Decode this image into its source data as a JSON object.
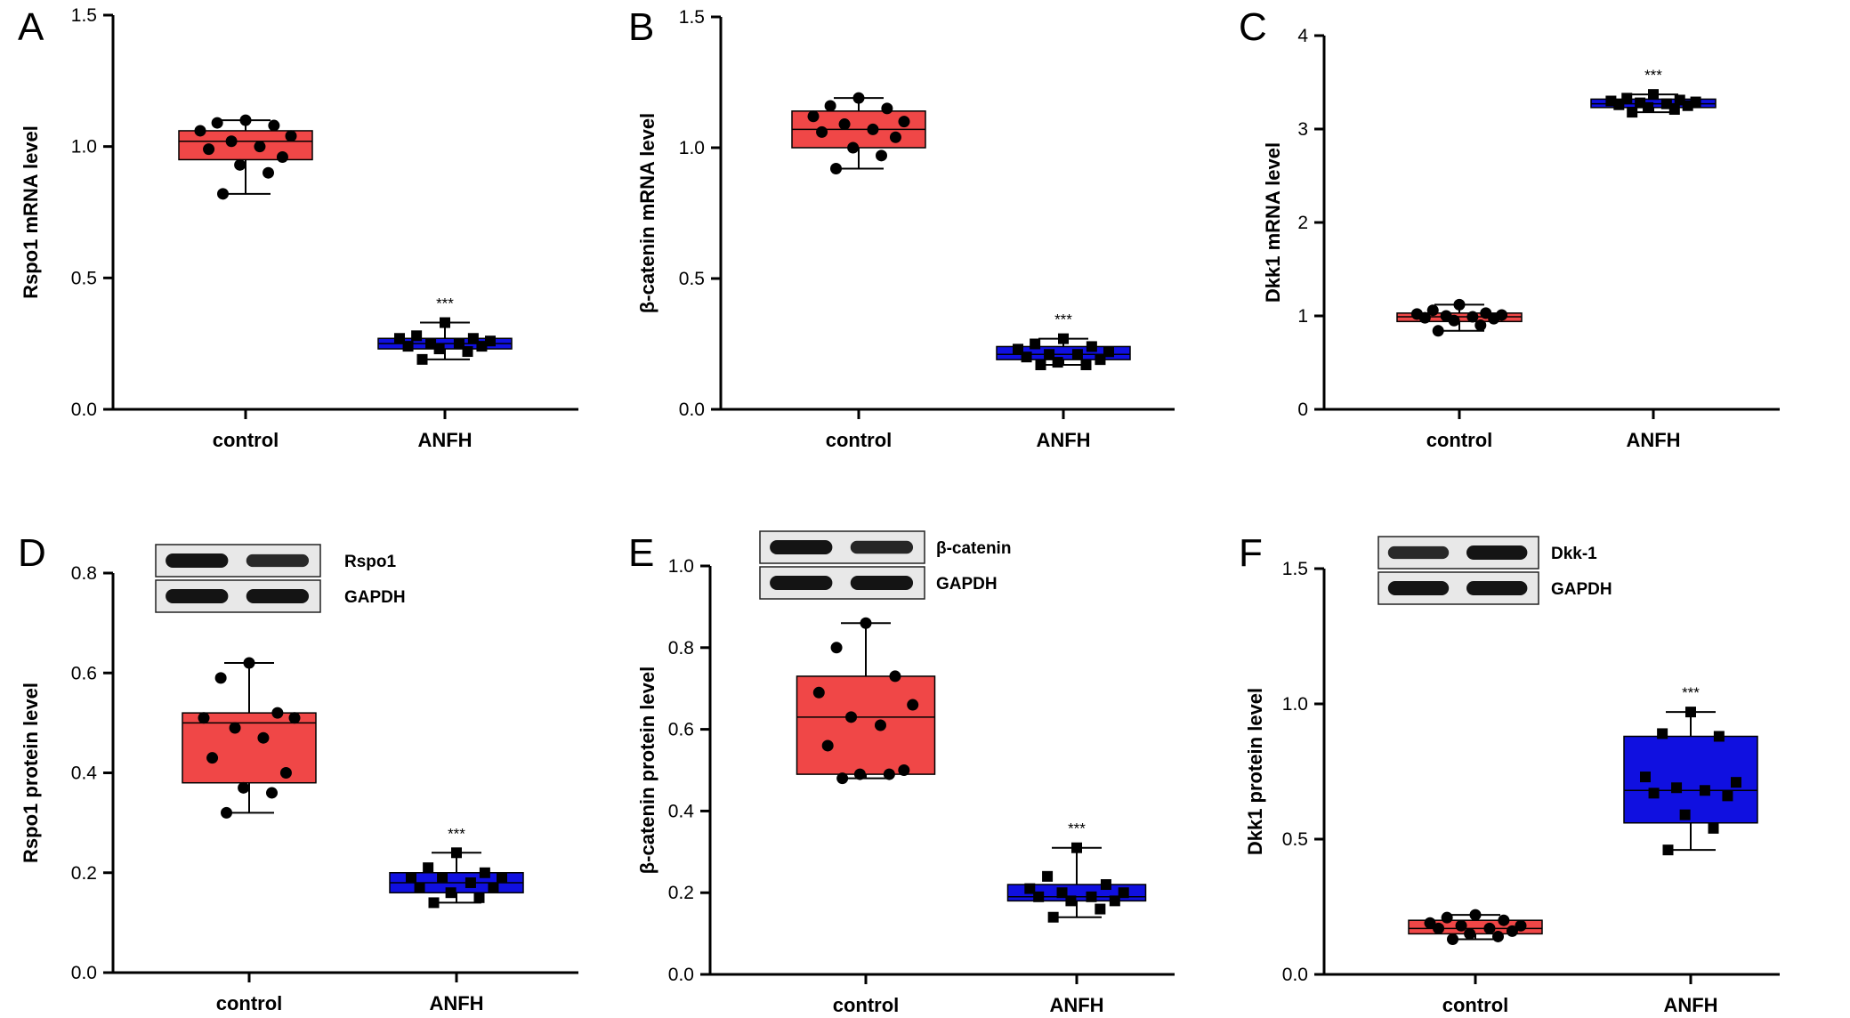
{
  "colors": {
    "control": "#f04747",
    "anfh": "#1010e0",
    "axis": "#000000"
  },
  "chart_data": [
    {
      "type": "box",
      "panel": "A",
      "ylabel": "Rspo1 mRNA level",
      "ylim": [
        0,
        1.5
      ],
      "yticks": [
        0.0,
        0.5,
        1.0,
        1.5
      ],
      "ytick_labels": [
        "0.0",
        "0.5",
        "1.0",
        "1.5"
      ],
      "categories": [
        "control",
        "ANFH"
      ],
      "series": [
        {
          "category": "control",
          "color": "#f04747",
          "marker": "circle",
          "min": 0.82,
          "q1": 0.95,
          "median": 1.02,
          "q3": 1.06,
          "max": 1.1,
          "points": [
            1.1,
            1.09,
            1.08,
            1.06,
            1.04,
            1.02,
            1.0,
            0.99,
            0.96,
            0.93,
            0.9,
            0.82
          ]
        },
        {
          "category": "ANFH",
          "color": "#1010e0",
          "marker": "square",
          "min": 0.19,
          "q1": 0.23,
          "median": 0.25,
          "q3": 0.27,
          "max": 0.33,
          "points": [
            0.33,
            0.28,
            0.27,
            0.27,
            0.26,
            0.25,
            0.25,
            0.24,
            0.24,
            0.23,
            0.22,
            0.19
          ],
          "significance": "***"
        }
      ]
    },
    {
      "type": "box",
      "panel": "B",
      "ylabel": "β-catenin mRNA level",
      "ylim": [
        0,
        1.5
      ],
      "yticks": [
        0.0,
        0.5,
        1.0,
        1.5
      ],
      "ytick_labels": [
        "0.0",
        "0.5",
        "1.0",
        "1.5"
      ],
      "categories": [
        "control",
        "ANFH"
      ],
      "series": [
        {
          "category": "control",
          "color": "#f04747",
          "marker": "circle",
          "min": 0.92,
          "q1": 1.0,
          "median": 1.07,
          "q3": 1.14,
          "max": 1.19,
          "points": [
            1.19,
            1.16,
            1.15,
            1.12,
            1.1,
            1.09,
            1.07,
            1.06,
            1.04,
            1.0,
            0.97,
            0.92
          ]
        },
        {
          "category": "ANFH",
          "color": "#1010e0",
          "marker": "square",
          "min": 0.17,
          "q1": 0.19,
          "median": 0.21,
          "q3": 0.24,
          "max": 0.27,
          "points": [
            0.27,
            0.25,
            0.24,
            0.23,
            0.22,
            0.21,
            0.21,
            0.2,
            0.19,
            0.18,
            0.17,
            0.17
          ],
          "significance": "***"
        }
      ]
    },
    {
      "type": "box",
      "panel": "C",
      "ylabel": "Dkk1 mRNA level",
      "ylim": [
        0,
        4
      ],
      "yticks": [
        0,
        1,
        2,
        3,
        4
      ],
      "ytick_labels": [
        "0",
        "1",
        "2",
        "3",
        "4"
      ],
      "categories": [
        "control",
        "ANFH"
      ],
      "series": [
        {
          "category": "control",
          "color": "#f04747",
          "marker": "circle",
          "min": 0.84,
          "q1": 0.94,
          "median": 0.99,
          "q3": 1.03,
          "max": 1.12,
          "points": [
            1.12,
            1.06,
            1.03,
            1.02,
            1.01,
            1.0,
            0.99,
            0.98,
            0.97,
            0.95,
            0.9,
            0.84
          ]
        },
        {
          "category": "ANFH",
          "color": "#1010e0",
          "marker": "square",
          "min": 3.18,
          "q1": 3.23,
          "median": 3.27,
          "q3": 3.32,
          "max": 3.37,
          "points": [
            3.37,
            3.33,
            3.31,
            3.3,
            3.29,
            3.28,
            3.27,
            3.26,
            3.25,
            3.23,
            3.21,
            3.18
          ],
          "significance": "***"
        }
      ]
    },
    {
      "type": "box",
      "panel": "D",
      "ylabel": "Rspo1 protein level",
      "ylim": [
        0,
        0.8
      ],
      "yticks": [
        0.0,
        0.2,
        0.4,
        0.6,
        0.8
      ],
      "ytick_labels": [
        "0.0",
        "0.2",
        "0.4",
        "0.6",
        "0.8"
      ],
      "categories": [
        "control",
        "ANFH"
      ],
      "blot": {
        "labels": [
          "Rspo1",
          "GAPDH"
        ],
        "band_intensity": [
          [
            1.0,
            0.7
          ],
          [
            1.0,
            1.0
          ]
        ]
      },
      "series": [
        {
          "category": "control",
          "color": "#f04747",
          "marker": "circle",
          "min": 0.32,
          "q1": 0.38,
          "median": 0.5,
          "q3": 0.52,
          "max": 0.62,
          "points": [
            0.62,
            0.59,
            0.52,
            0.51,
            0.51,
            0.49,
            0.47,
            0.43,
            0.4,
            0.37,
            0.36,
            0.32
          ]
        },
        {
          "category": "ANFH",
          "color": "#1010e0",
          "marker": "square",
          "min": 0.14,
          "q1": 0.16,
          "median": 0.18,
          "q3": 0.2,
          "max": 0.24,
          "points": [
            0.24,
            0.21,
            0.2,
            0.19,
            0.19,
            0.19,
            0.18,
            0.17,
            0.17,
            0.16,
            0.15,
            0.14
          ],
          "significance": "***"
        }
      ]
    },
    {
      "type": "box",
      "panel": "E",
      "ylabel": "β-catenin protein level",
      "ylim": [
        0,
        1.0
      ],
      "yticks": [
        0.0,
        0.2,
        0.4,
        0.6,
        0.8,
        1.0
      ],
      "ytick_labels": [
        "0.0",
        "0.2",
        "0.4",
        "0.6",
        "0.8",
        "1.0"
      ],
      "categories": [
        "control",
        "ANFH"
      ],
      "blot": {
        "labels": [
          "β-catenin",
          "GAPDH"
        ],
        "band_intensity": [
          [
            1.0,
            0.75
          ],
          [
            1.0,
            1.0
          ]
        ]
      },
      "series": [
        {
          "category": "control",
          "color": "#f04747",
          "marker": "circle",
          "min": 0.48,
          "q1": 0.49,
          "median": 0.63,
          "q3": 0.73,
          "max": 0.86,
          "points": [
            0.86,
            0.8,
            0.73,
            0.69,
            0.66,
            0.63,
            0.61,
            0.56,
            0.5,
            0.49,
            0.49,
            0.48
          ]
        },
        {
          "category": "ANFH",
          "color": "#1010e0",
          "marker": "square",
          "min": 0.14,
          "q1": 0.18,
          "median": 0.19,
          "q3": 0.22,
          "max": 0.31,
          "points": [
            0.31,
            0.24,
            0.22,
            0.21,
            0.2,
            0.2,
            0.19,
            0.19,
            0.18,
            0.18,
            0.16,
            0.14
          ],
          "significance": "***"
        }
      ]
    },
    {
      "type": "box",
      "panel": "F",
      "ylabel": "Dkk1 protein level",
      "ylim": [
        0,
        1.5
      ],
      "yticks": [
        0.0,
        0.5,
        1.0,
        1.5
      ],
      "ytick_labels": [
        "0.0",
        "0.5",
        "1.0",
        "1.5"
      ],
      "categories": [
        "control",
        "ANFH"
      ],
      "blot": {
        "labels": [
          "Dkk-1",
          "GAPDH"
        ],
        "band_intensity": [
          [
            0.7,
            1.0
          ],
          [
            1.0,
            1.0
          ]
        ]
      },
      "series": [
        {
          "category": "control",
          "color": "#f04747",
          "marker": "circle",
          "min": 0.13,
          "q1": 0.15,
          "median": 0.17,
          "q3": 0.2,
          "max": 0.22,
          "points": [
            0.22,
            0.21,
            0.2,
            0.19,
            0.18,
            0.18,
            0.17,
            0.17,
            0.16,
            0.15,
            0.14,
            0.13
          ]
        },
        {
          "category": "ANFH",
          "color": "#1010e0",
          "marker": "square",
          "min": 0.46,
          "q1": 0.56,
          "median": 0.68,
          "q3": 0.88,
          "max": 0.97,
          "points": [
            0.97,
            0.89,
            0.88,
            0.73,
            0.71,
            0.69,
            0.68,
            0.67,
            0.66,
            0.59,
            0.54,
            0.46
          ],
          "significance": "***"
        }
      ]
    }
  ]
}
